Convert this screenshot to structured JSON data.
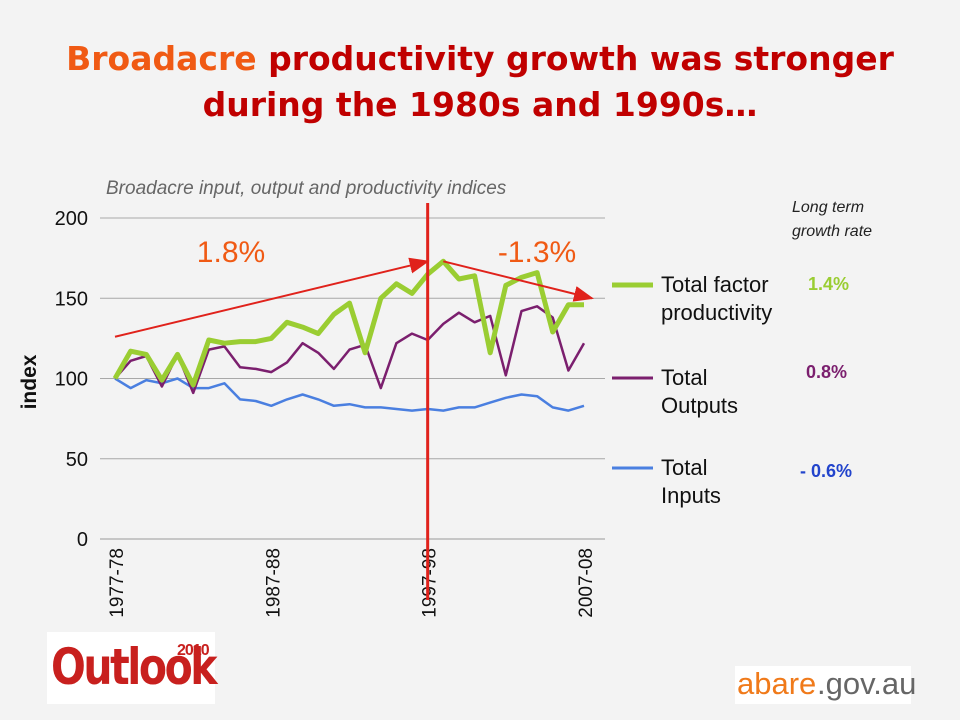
{
  "slide": {
    "title_highlight": "Broadacre",
    "title_rest_line1": " productivity growth was stronger",
    "title_line2": "during the 1980s and 1990s…",
    "subtitle": "Broadacre input, output and productivity indices",
    "growth_header_line1": "Long term",
    "growth_header_line2": "growth rate",
    "growth_rates": [
      "1.4%",
      "0.8%",
      "- 0.6%"
    ],
    "logos": {
      "outlook_word": "Outlook",
      "outlook_year": "2010",
      "abare_main": "abare",
      "abare_suffix": ".gov.au"
    },
    "colors": {
      "title_red": "#c00000",
      "title_orange": "#f05a14",
      "tfp_green": "#9acd32",
      "outputs_purple": "#7b1f6e",
      "inputs_blue": "#4a7fe0",
      "trend_red": "#e0221b"
    }
  },
  "chart_data": {
    "type": "line",
    "ylabel": "index",
    "xlabel": "",
    "ylim": [
      0,
      200
    ],
    "yticks": [
      0,
      50,
      100,
      150,
      200
    ],
    "grid": true,
    "legend_placement": "right",
    "x": [
      "1977-78",
      "1978-79",
      "1979-80",
      "1980-81",
      "1981-82",
      "1982-83",
      "1983-84",
      "1984-85",
      "1985-86",
      "1986-87",
      "1987-88",
      "1988-89",
      "1989-90",
      "1990-91",
      "1991-92",
      "1992-93",
      "1993-94",
      "1994-95",
      "1995-96",
      "1996-97",
      "1997-98",
      "1998-99",
      "1999-00",
      "2000-01",
      "2001-02",
      "2002-03",
      "2003-04",
      "2004-05",
      "2005-06",
      "2006-07",
      "2007-08"
    ],
    "xtick_labels": [
      "1977-78",
      "1987-88",
      "1997-98",
      "2007-08"
    ],
    "series": [
      {
        "name": "Total factor productivity",
        "color": "#9acd32",
        "values": [
          100,
          117,
          115,
          99,
          115,
          96,
          124,
          122,
          123,
          123,
          125,
          135,
          132,
          128,
          140,
          147,
          116,
          150,
          159,
          153,
          165,
          173,
          162,
          164,
          116,
          158,
          163,
          166,
          129,
          146,
          146
        ]
      },
      {
        "name": "Total Outputs",
        "color": "#7b1f6e",
        "values": [
          100,
          111,
          114,
          95,
          115,
          91,
          118,
          120,
          107,
          106,
          104,
          110,
          122,
          116,
          106,
          118,
          121,
          94,
          122,
          128,
          124,
          134,
          141,
          135,
          139,
          102,
          142,
          145,
          138,
          105,
          122
        ]
      },
      {
        "name": "Total Inputs",
        "color": "#4a7fe0",
        "values": [
          100,
          94,
          99,
          97,
          100,
          94,
          94,
          97,
          87,
          86,
          83,
          87,
          90,
          87,
          83,
          84,
          82,
          82,
          81,
          80,
          81,
          80,
          82,
          82,
          85,
          88,
          90,
          89,
          82,
          80,
          83
        ]
      }
    ],
    "annotations": [
      {
        "text": "1.8%",
        "from_x": "1977-78",
        "from_y": 126,
        "to_x": "1997-98",
        "to_y": 173
      },
      {
        "text": "-1.3%",
        "from_x": "1998-99",
        "from_y": 173,
        "to_x": "2007-08",
        "to_y": 150
      },
      {
        "vertical_line_at": "1997-98"
      }
    ]
  }
}
